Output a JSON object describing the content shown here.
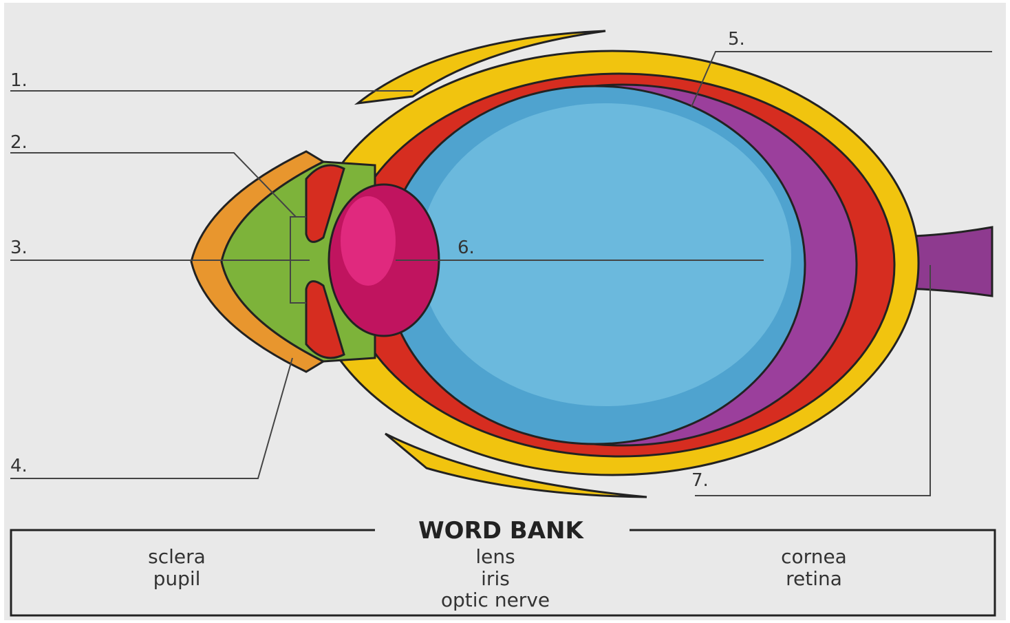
{
  "labels": [
    "1.",
    "2.",
    "3.",
    "4.",
    "5.",
    "6.",
    "7."
  ],
  "word_bank": {
    "title": "WORD BANK",
    "columns": [
      [
        "sclera",
        "pupil"
      ],
      [
        "lens",
        "iris",
        "optic nerve"
      ],
      [
        "cornea",
        "retina"
      ]
    ]
  }
}
